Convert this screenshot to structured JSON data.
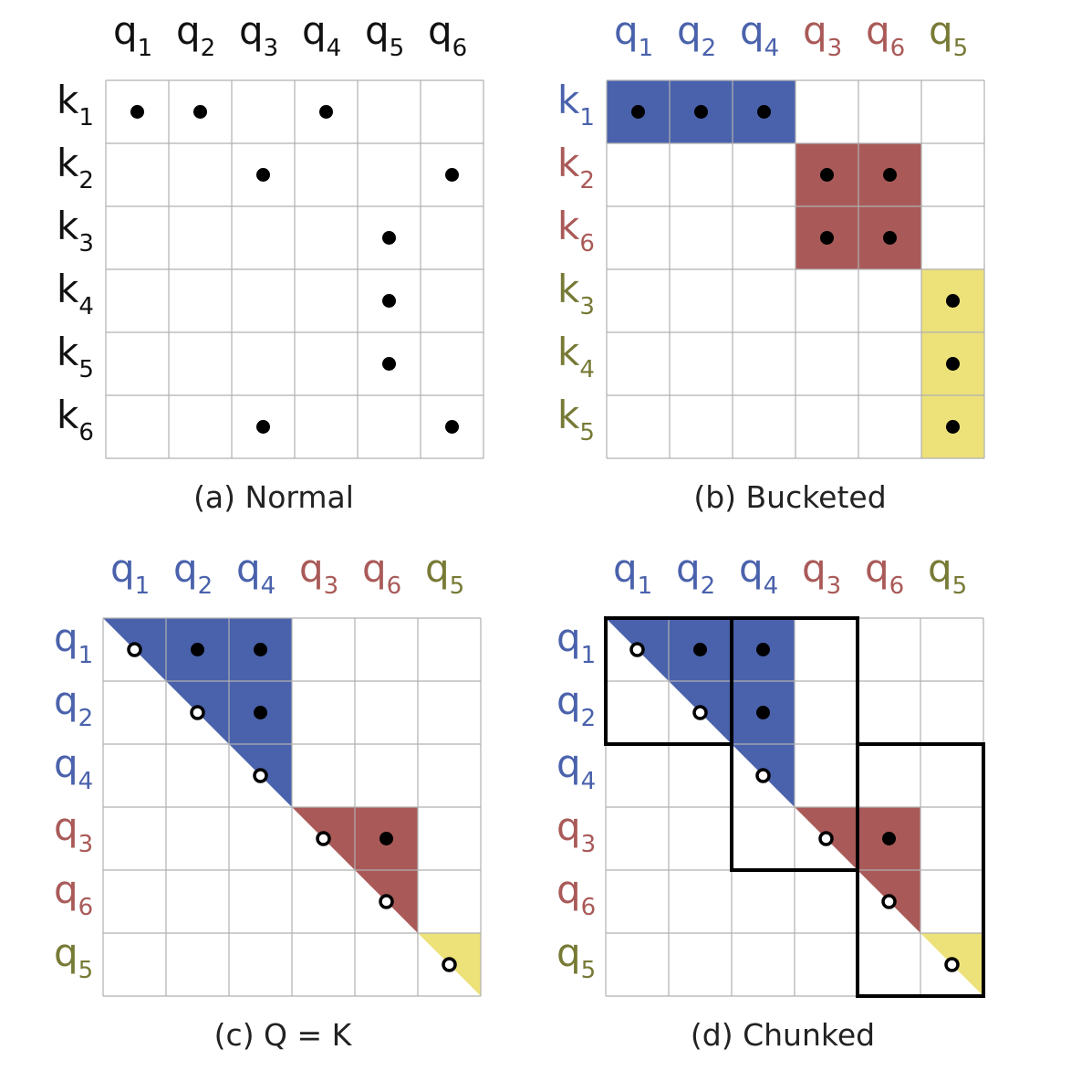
{
  "colors": {
    "blue": "#4a62ac",
    "red": "#a95a58",
    "yellow": "#ede17a",
    "grid": "#b0b0b0",
    "black_label": "#111111",
    "olive_label": "#777a35"
  },
  "panels": [
    {
      "id": "a",
      "caption": "(a) Normal",
      "cols": [
        {
          "base": "q",
          "sub": "1",
          "color": "black"
        },
        {
          "base": "q",
          "sub": "2",
          "color": "black"
        },
        {
          "base": "q",
          "sub": "3",
          "color": "black"
        },
        {
          "base": "q",
          "sub": "4",
          "color": "black"
        },
        {
          "base": "q",
          "sub": "5",
          "color": "black"
        },
        {
          "base": "q",
          "sub": "6",
          "color": "black"
        }
      ],
      "rows": [
        {
          "base": "k",
          "sub": "1",
          "color": "black"
        },
        {
          "base": "k",
          "sub": "2",
          "color": "black"
        },
        {
          "base": "k",
          "sub": "3",
          "color": "black"
        },
        {
          "base": "k",
          "sub": "4",
          "color": "black"
        },
        {
          "base": "k",
          "sub": "5",
          "color": "black"
        },
        {
          "base": "k",
          "sub": "6",
          "color": "black"
        }
      ],
      "fills": [],
      "dots": [
        {
          "row": 0,
          "col": 0,
          "kind": "solid"
        },
        {
          "row": 0,
          "col": 1,
          "kind": "solid"
        },
        {
          "row": 0,
          "col": 3,
          "kind": "solid"
        },
        {
          "row": 1,
          "col": 2,
          "kind": "solid"
        },
        {
          "row": 1,
          "col": 5,
          "kind": "solid"
        },
        {
          "row": 2,
          "col": 4,
          "kind": "solid"
        },
        {
          "row": 3,
          "col": 4,
          "kind": "solid"
        },
        {
          "row": 4,
          "col": 4,
          "kind": "solid"
        },
        {
          "row": 5,
          "col": 2,
          "kind": "solid"
        },
        {
          "row": 5,
          "col": 5,
          "kind": "solid"
        }
      ],
      "chunks": []
    },
    {
      "id": "b",
      "caption": "(b) Bucketed",
      "cols": [
        {
          "base": "q",
          "sub": "1",
          "color": "blue"
        },
        {
          "base": "q",
          "sub": "2",
          "color": "blue"
        },
        {
          "base": "q",
          "sub": "4",
          "color": "blue"
        },
        {
          "base": "q",
          "sub": "3",
          "color": "red"
        },
        {
          "base": "q",
          "sub": "6",
          "color": "red"
        },
        {
          "base": "q",
          "sub": "5",
          "color": "olive"
        }
      ],
      "rows": [
        {
          "base": "k",
          "sub": "1",
          "color": "blue"
        },
        {
          "base": "k",
          "sub": "2",
          "color": "red"
        },
        {
          "base": "k",
          "sub": "6",
          "color": "red"
        },
        {
          "base": "k",
          "sub": "3",
          "color": "olive"
        },
        {
          "base": "k",
          "sub": "4",
          "color": "olive"
        },
        {
          "base": "k",
          "sub": "5",
          "color": "olive"
        }
      ],
      "fills": [
        {
          "shape": "rect",
          "r0": 0,
          "r1": 1,
          "c0": 0,
          "c1": 3,
          "color": "blue"
        },
        {
          "shape": "rect",
          "r0": 1,
          "r1": 3,
          "c0": 3,
          "c1": 5,
          "color": "red"
        },
        {
          "shape": "rect",
          "r0": 3,
          "r1": 6,
          "c0": 5,
          "c1": 6,
          "color": "yellow"
        }
      ],
      "dots": [
        {
          "row": 0,
          "col": 0,
          "kind": "solid"
        },
        {
          "row": 0,
          "col": 1,
          "kind": "solid"
        },
        {
          "row": 0,
          "col": 2,
          "kind": "solid"
        },
        {
          "row": 1,
          "col": 3,
          "kind": "solid"
        },
        {
          "row": 1,
          "col": 4,
          "kind": "solid"
        },
        {
          "row": 2,
          "col": 3,
          "kind": "solid"
        },
        {
          "row": 2,
          "col": 4,
          "kind": "solid"
        },
        {
          "row": 3,
          "col": 5,
          "kind": "solid"
        },
        {
          "row": 4,
          "col": 5,
          "kind": "solid"
        },
        {
          "row": 5,
          "col": 5,
          "kind": "solid"
        }
      ],
      "chunks": []
    },
    {
      "id": "c",
      "caption": "(c) Q = K",
      "cols": [
        {
          "base": "q",
          "sub": "1",
          "color": "blue"
        },
        {
          "base": "q",
          "sub": "2",
          "color": "blue"
        },
        {
          "base": "q",
          "sub": "4",
          "color": "blue"
        },
        {
          "base": "q",
          "sub": "3",
          "color": "red"
        },
        {
          "base": "q",
          "sub": "6",
          "color": "red"
        },
        {
          "base": "q",
          "sub": "5",
          "color": "olive"
        }
      ],
      "rows": [
        {
          "base": "q",
          "sub": "1",
          "color": "blue"
        },
        {
          "base": "q",
          "sub": "2",
          "color": "blue"
        },
        {
          "base": "q",
          "sub": "4",
          "color": "blue"
        },
        {
          "base": "q",
          "sub": "3",
          "color": "red"
        },
        {
          "base": "q",
          "sub": "6",
          "color": "red"
        },
        {
          "base": "q",
          "sub": "5",
          "color": "olive"
        }
      ],
      "fills": [
        {
          "shape": "tri",
          "start": 0,
          "end": 3,
          "color": "blue"
        },
        {
          "shape": "tri",
          "start": 3,
          "end": 5,
          "color": "red"
        },
        {
          "shape": "tri",
          "start": 5,
          "end": 6,
          "color": "yellow"
        }
      ],
      "dots": [
        {
          "row": 0,
          "col": 0,
          "kind": "ring"
        },
        {
          "row": 0,
          "col": 1,
          "kind": "solid"
        },
        {
          "row": 0,
          "col": 2,
          "kind": "solid"
        },
        {
          "row": 1,
          "col": 1,
          "kind": "ring"
        },
        {
          "row": 1,
          "col": 2,
          "kind": "solid"
        },
        {
          "row": 2,
          "col": 2,
          "kind": "ring"
        },
        {
          "row": 3,
          "col": 3,
          "kind": "ring"
        },
        {
          "row": 3,
          "col": 4,
          "kind": "solid"
        },
        {
          "row": 4,
          "col": 4,
          "kind": "ring"
        },
        {
          "row": 5,
          "col": 5,
          "kind": "ring"
        }
      ],
      "chunks": []
    },
    {
      "id": "d",
      "caption": "(d) Chunked",
      "cols": [
        {
          "base": "q",
          "sub": "1",
          "color": "blue"
        },
        {
          "base": "q",
          "sub": "2",
          "color": "blue"
        },
        {
          "base": "q",
          "sub": "4",
          "color": "blue"
        },
        {
          "base": "q",
          "sub": "3",
          "color": "red"
        },
        {
          "base": "q",
          "sub": "6",
          "color": "red"
        },
        {
          "base": "q",
          "sub": "5",
          "color": "olive"
        }
      ],
      "rows": [
        {
          "base": "q",
          "sub": "1",
          "color": "blue"
        },
        {
          "base": "q",
          "sub": "2",
          "color": "blue"
        },
        {
          "base": "q",
          "sub": "4",
          "color": "blue"
        },
        {
          "base": "q",
          "sub": "3",
          "color": "red"
        },
        {
          "base": "q",
          "sub": "6",
          "color": "red"
        },
        {
          "base": "q",
          "sub": "5",
          "color": "olive"
        }
      ],
      "fills": [
        {
          "shape": "tri",
          "start": 0,
          "end": 3,
          "color": "blue"
        },
        {
          "shape": "tri",
          "start": 3,
          "end": 5,
          "color": "red"
        },
        {
          "shape": "tri",
          "start": 5,
          "end": 6,
          "color": "yellow"
        }
      ],
      "dots": [
        {
          "row": 0,
          "col": 0,
          "kind": "ring"
        },
        {
          "row": 0,
          "col": 1,
          "kind": "solid"
        },
        {
          "row": 0,
          "col": 2,
          "kind": "solid"
        },
        {
          "row": 1,
          "col": 1,
          "kind": "ring"
        },
        {
          "row": 1,
          "col": 2,
          "kind": "solid"
        },
        {
          "row": 2,
          "col": 2,
          "kind": "ring"
        },
        {
          "row": 3,
          "col": 3,
          "kind": "ring"
        },
        {
          "row": 3,
          "col": 4,
          "kind": "solid"
        },
        {
          "row": 4,
          "col": 4,
          "kind": "ring"
        },
        {
          "row": 5,
          "col": 5,
          "kind": "ring"
        }
      ],
      "chunks": [
        {
          "r0": 0,
          "r1": 2,
          "c0": 0,
          "c1": 2
        },
        {
          "r0": 0,
          "r1": 4,
          "c0": 2,
          "c1": 4
        },
        {
          "r0": 2,
          "r1": 6,
          "c0": 4,
          "c1": 6
        }
      ]
    }
  ]
}
